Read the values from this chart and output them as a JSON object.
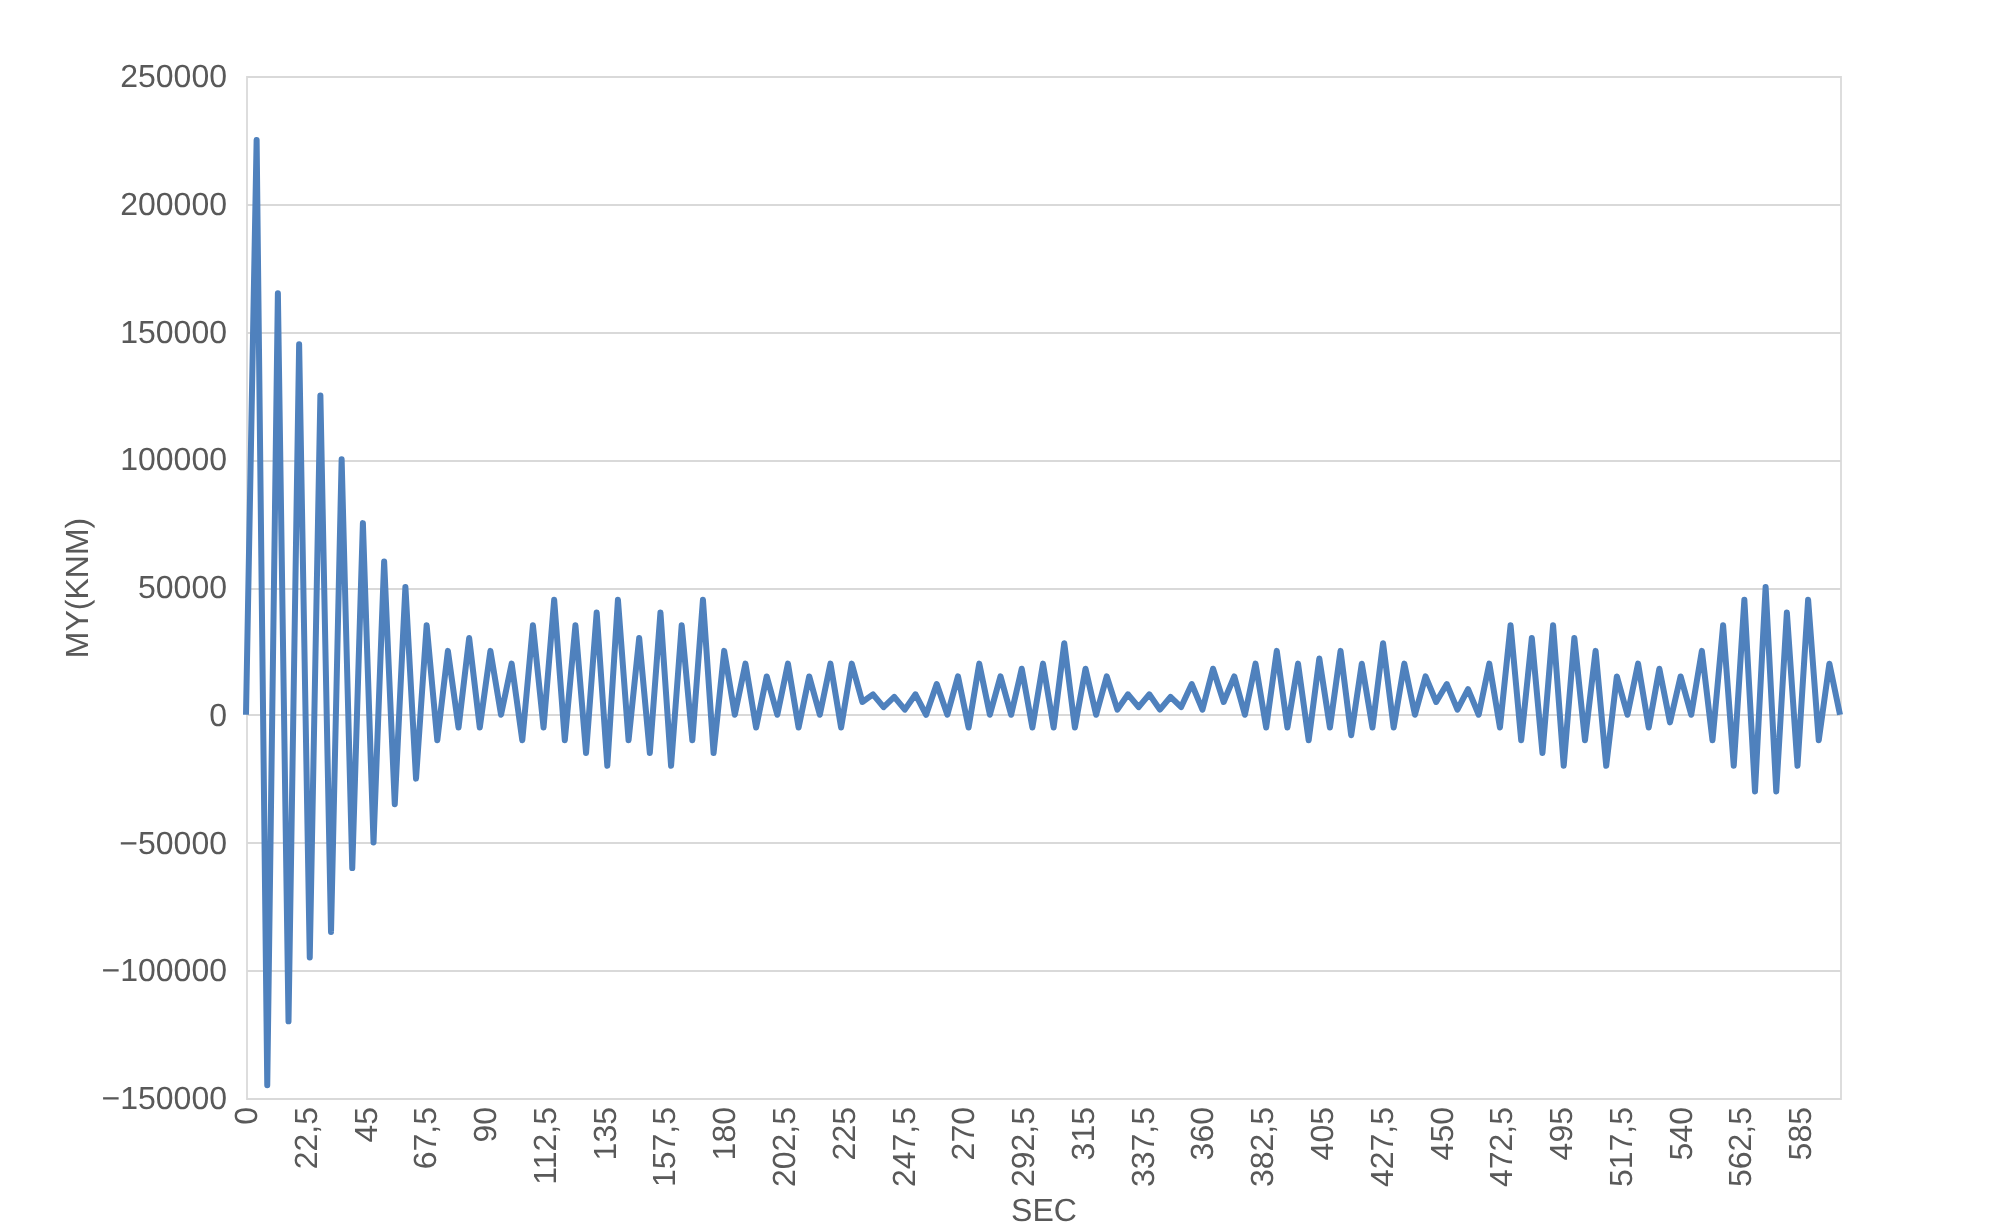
{
  "chart_data": {
    "type": "line",
    "xlabel": "SEC",
    "ylabel": "MY(KNM)",
    "x": [
      0,
      4,
      8,
      12,
      16,
      20,
      24,
      28,
      32,
      36,
      40,
      44,
      48,
      52,
      56,
      60,
      64,
      68,
      72,
      76,
      80,
      84,
      88,
      92,
      96,
      100,
      104,
      108,
      112,
      116,
      120,
      124,
      128,
      132,
      136,
      140,
      144,
      148,
      152,
      156,
      160,
      164,
      168,
      172,
      176,
      180,
      184,
      188,
      192,
      196,
      200,
      204,
      208,
      212,
      216,
      220,
      224,
      228,
      232,
      236,
      240,
      244,
      248,
      252,
      256,
      260,
      264,
      268,
      272,
      276,
      280,
      284,
      288,
      292,
      296,
      300,
      304,
      308,
      312,
      316,
      320,
      324,
      328,
      332,
      336,
      340,
      344,
      348,
      352,
      356,
      360,
      364,
      368,
      372,
      376,
      380,
      384,
      388,
      392,
      396,
      400,
      404,
      408,
      412,
      416,
      420,
      424,
      428,
      432,
      436,
      440,
      444,
      448,
      452,
      456,
      460,
      464,
      468,
      472,
      476,
      480,
      484,
      488,
      492,
      496,
      500,
      504,
      508,
      512,
      516,
      520,
      524,
      528,
      532,
      536,
      540,
      544,
      548,
      552,
      556,
      560,
      564,
      568,
      572,
      576,
      580,
      584,
      588,
      592,
      596,
      600
    ],
    "series": [
      {
        "color": "#4f81bd",
        "values": [
          0,
          225000,
          -145000,
          165000,
          -120000,
          145000,
          -95000,
          125000,
          -85000,
          100000,
          -60000,
          75000,
          -50000,
          60000,
          -35000,
          50000,
          -25000,
          35000,
          -10000,
          25000,
          -5000,
          30000,
          -5000,
          25000,
          0,
          20000,
          -10000,
          35000,
          -5000,
          45000,
          -10000,
          35000,
          -15000,
          40000,
          -20000,
          45000,
          -10000,
          30000,
          -15000,
          40000,
          -20000,
          35000,
          -10000,
          45000,
          -15000,
          25000,
          0,
          20000,
          -5000,
          15000,
          0,
          20000,
          -5000,
          15000,
          0,
          20000,
          -5000,
          20000,
          5000,
          8000,
          3000,
          7000,
          2000,
          8000,
          0,
          12000,
          0,
          15000,
          -5000,
          20000,
          0,
          15000,
          0,
          18000,
          -5000,
          20000,
          -5000,
          28000,
          -5000,
          18000,
          0,
          15000,
          2000,
          8000,
          3000,
          8000,
          2000,
          7000,
          3000,
          12000,
          2000,
          18000,
          5000,
          15000,
          0,
          20000,
          -5000,
          25000,
          -5000,
          20000,
          -10000,
          22000,
          -5000,
          25000,
          -8000,
          20000,
          -5000,
          28000,
          -5000,
          20000,
          0,
          15000,
          5000,
          12000,
          2000,
          10000,
          0,
          20000,
          -5000,
          35000,
          -10000,
          30000,
          -15000,
          35000,
          -20000,
          30000,
          -10000,
          25000,
          -20000,
          15000,
          0,
          20000,
          -5000,
          18000,
          -3000,
          15000,
          0,
          25000,
          -10000,
          35000,
          -20000,
          45000,
          -30000,
          50000,
          -30000,
          40000,
          -20000,
          45000,
          -10000,
          20000,
          0
        ]
      }
    ],
    "xlim": [
      0,
      600
    ],
    "xticks": [
      0,
      {
        "value": 22.5,
        "label": "22,5"
      },
      45,
      {
        "value": 67.5,
        "label": "67,5"
      },
      90,
      {
        "value": 112.5,
        "label": "112,5"
      },
      135,
      {
        "value": 157.5,
        "label": "157,5"
      },
      180,
      {
        "value": 202.5,
        "label": "202,5"
      },
      225,
      {
        "value": 247.5,
        "label": "247,5"
      },
      270,
      {
        "value": 292.5,
        "label": "292,5"
      },
      315,
      {
        "value": 337.5,
        "label": "337,5"
      },
      360,
      {
        "value": 382.5,
        "label": "382,5"
      },
      405,
      {
        "value": 427.5,
        "label": "427,5"
      },
      450,
      {
        "value": 472.5,
        "label": "472,5"
      },
      495,
      {
        "value": 517.5,
        "label": "517,5"
      },
      540,
      {
        "value": 562.5,
        "label": "562,5"
      },
      585
    ],
    "ylim": [
      -150000,
      250000
    ],
    "yticks": [
      -150000,
      -100000,
      -50000,
      0,
      50000,
      100000,
      150000,
      200000,
      250000
    ],
    "grid": "y",
    "legend": false,
    "marker": "none",
    "line_style": "solid"
  }
}
